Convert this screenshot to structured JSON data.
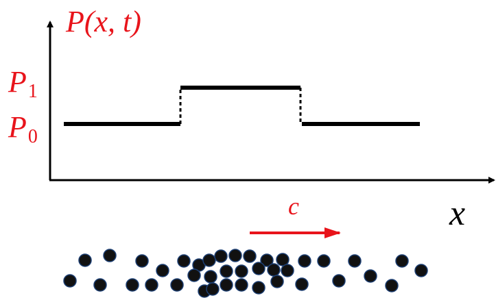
{
  "axis": {
    "y_label": "P(x, t)",
    "x_label": "x"
  },
  "levels": [
    {
      "symbol": "P",
      "subscript": "1"
    },
    {
      "symbol": "P",
      "subscript": "0"
    }
  ],
  "velocity_label": "c"
}
